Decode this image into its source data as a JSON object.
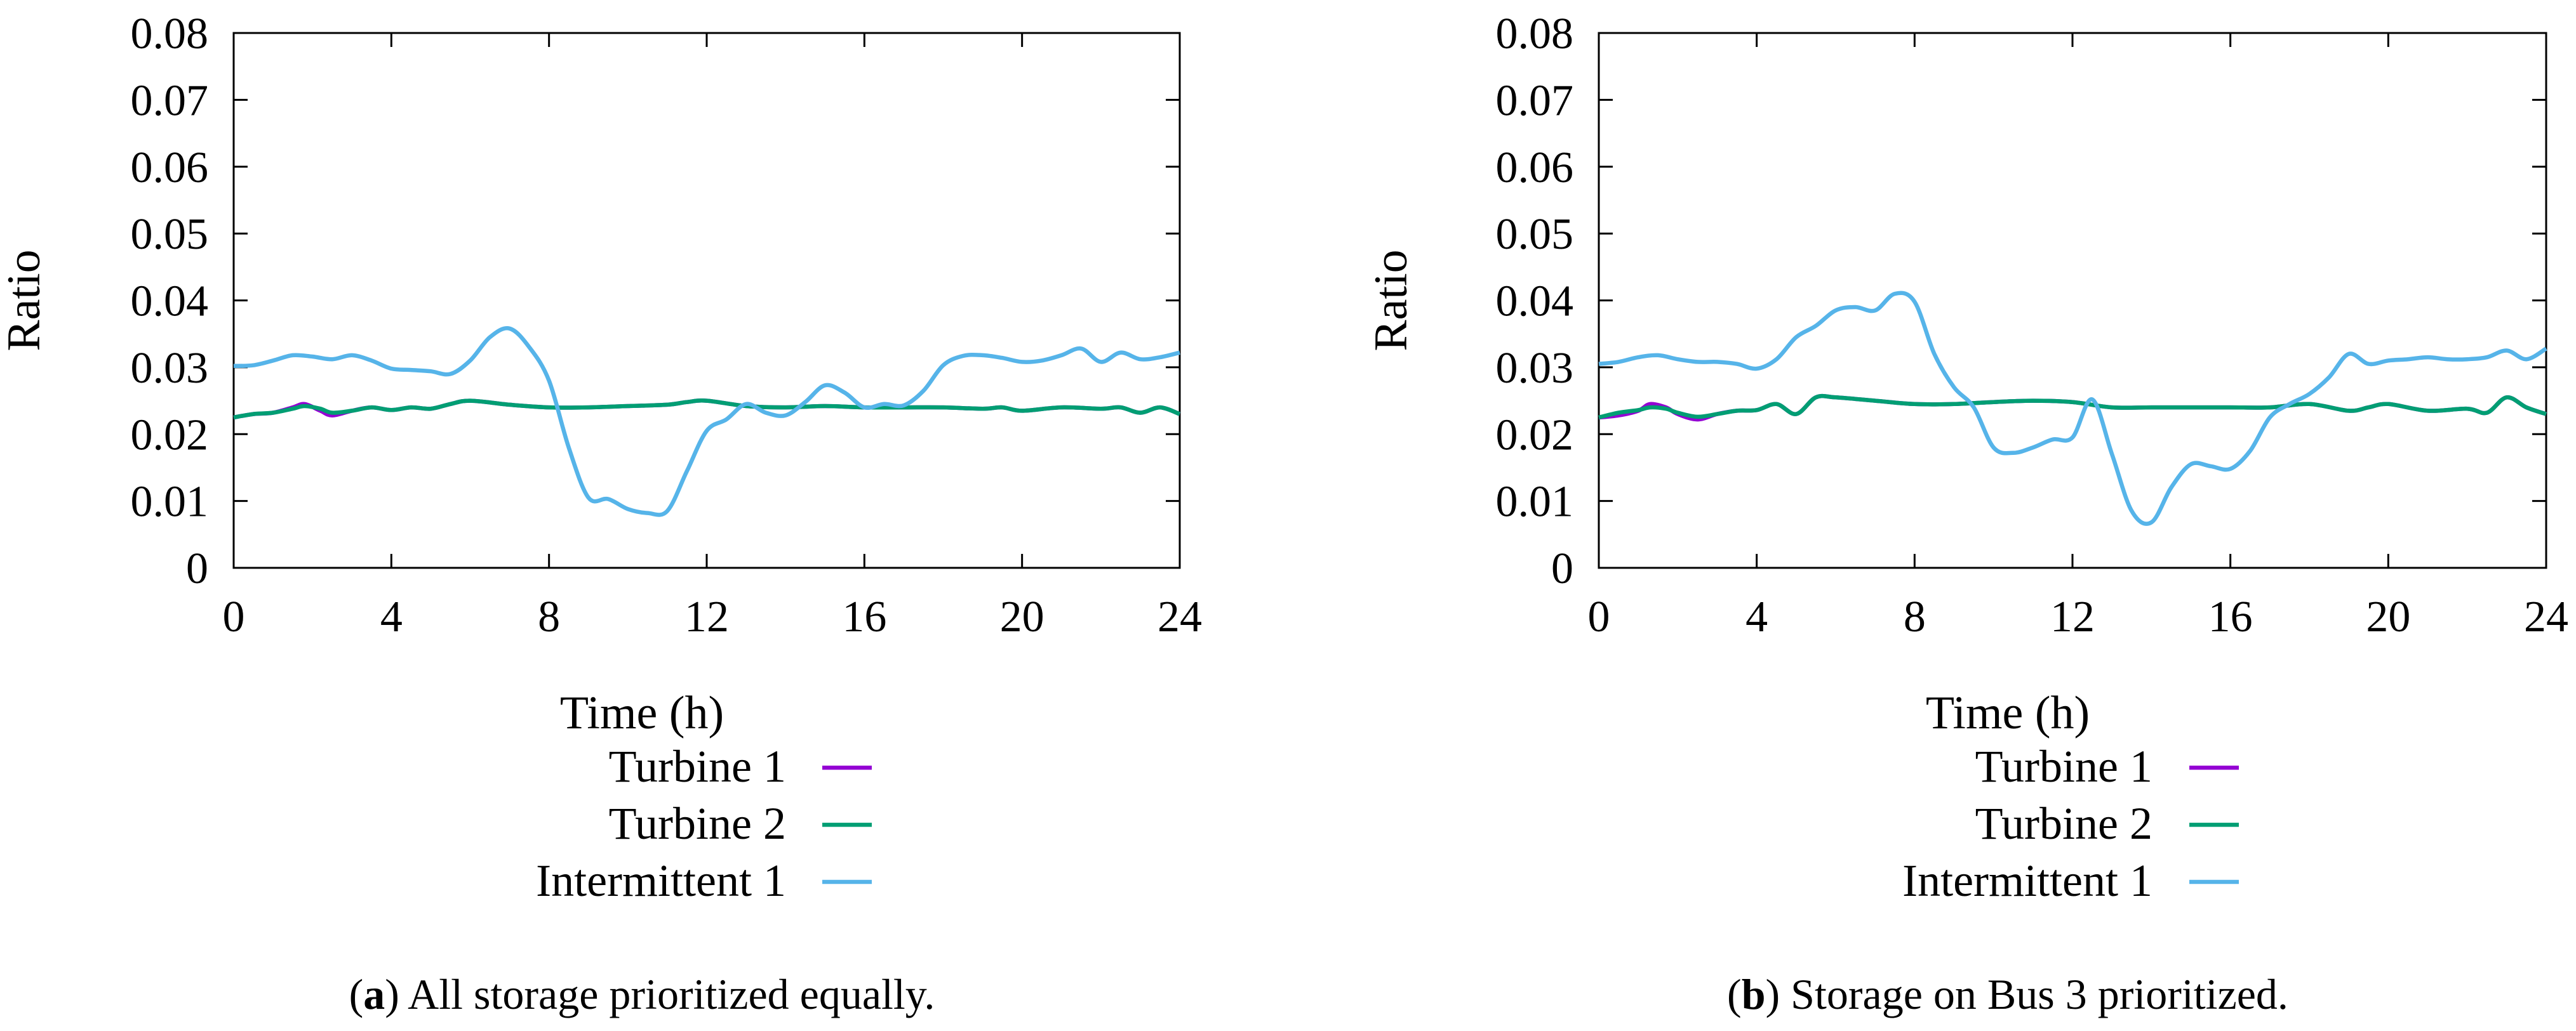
{
  "chart_data": [
    {
      "type": "line",
      "panel_label": "a",
      "caption": "All storage prioritized equally.",
      "xlabel": "Time (h)",
      "ylabel": "Ratio",
      "xlim": [
        0,
        24
      ],
      "ylim": [
        0,
        0.08
      ],
      "x_ticks": [
        "0",
        "4",
        "8",
        "12",
        "16",
        "20",
        "24"
      ],
      "y_ticks": [
        "0",
        "0.01",
        "0.02",
        "0.03",
        "0.04",
        "0.05",
        "0.06",
        "0.07",
        "0.08"
      ],
      "legend": [
        "Turbine 1",
        "Turbine 2",
        "Intermittent 1"
      ],
      "series": [
        {
          "name": "Turbine 1",
          "color": "#9400D3",
          "x": [
            0,
            0.5,
            1,
            1.5,
            1.8,
            2.2,
            2.5,
            3,
            3.5,
            4,
            4.5,
            5,
            5.5,
            6,
            7,
            8,
            9,
            10,
            11,
            11.5,
            12,
            13,
            14,
            15,
            16,
            17,
            18,
            19,
            19.5,
            20,
            21,
            22,
            22.5,
            23,
            23.5,
            24
          ],
          "values": [
            0.0225,
            0.023,
            0.0232,
            0.024,
            0.0245,
            0.0235,
            0.0228,
            0.0235,
            0.024,
            0.0236,
            0.024,
            0.0238,
            0.0245,
            0.025,
            0.0244,
            0.024,
            0.024,
            0.0242,
            0.0244,
            0.0248,
            0.025,
            0.0242,
            0.024,
            0.0242,
            0.024,
            0.024,
            0.024,
            0.0238,
            0.024,
            0.0235,
            0.024,
            0.0238,
            0.024,
            0.0232,
            0.024,
            0.023
          ]
        },
        {
          "name": "Turbine 2",
          "color": "#009E73",
          "x": [
            0,
            0.5,
            1,
            1.5,
            1.8,
            2.2,
            2.5,
            3,
            3.5,
            4,
            4.5,
            5,
            5.5,
            6,
            7,
            8,
            9,
            10,
            11,
            11.5,
            12,
            13,
            14,
            15,
            16,
            17,
            18,
            19,
            19.5,
            20,
            21,
            22,
            22.5,
            23,
            23.5,
            24
          ],
          "values": [
            0.0225,
            0.023,
            0.0232,
            0.0238,
            0.0242,
            0.0238,
            0.0232,
            0.0235,
            0.024,
            0.0236,
            0.024,
            0.0238,
            0.0245,
            0.025,
            0.0244,
            0.024,
            0.024,
            0.0242,
            0.0244,
            0.0248,
            0.025,
            0.0242,
            0.024,
            0.0242,
            0.024,
            0.024,
            0.024,
            0.0238,
            0.024,
            0.0235,
            0.024,
            0.0238,
            0.024,
            0.0232,
            0.024,
            0.023
          ]
        },
        {
          "name": "Intermittent 1",
          "color": "#56B4E9",
          "x": [
            0,
            0.5,
            1,
            1.5,
            2,
            2.5,
            3,
            3.5,
            4,
            4.5,
            5,
            5.5,
            6,
            6.5,
            7,
            7.5,
            8,
            8.5,
            9,
            9.5,
            10,
            10.5,
            11,
            11.5,
            12,
            12.5,
            13,
            13.5,
            14,
            14.5,
            15,
            15.5,
            16,
            16.5,
            17,
            17.5,
            18,
            18.5,
            19,
            19.5,
            20,
            20.5,
            21,
            21.5,
            22,
            22.5,
            23,
            23.5,
            24
          ],
          "values": [
            0.0302,
            0.0303,
            0.031,
            0.0318,
            0.0316,
            0.0312,
            0.0318,
            0.031,
            0.0298,
            0.0296,
            0.0294,
            0.029,
            0.031,
            0.0345,
            0.0358,
            0.033,
            0.028,
            0.018,
            0.0105,
            0.0103,
            0.0088,
            0.0082,
            0.0085,
            0.0145,
            0.0205,
            0.0222,
            0.0245,
            0.0232,
            0.0228,
            0.0248,
            0.0273,
            0.0262,
            0.024,
            0.0245,
            0.0243,
            0.0265,
            0.0303,
            0.0317,
            0.0318,
            0.0314,
            0.0308,
            0.031,
            0.0318,
            0.0328,
            0.0308,
            0.0322,
            0.0312,
            0.0315,
            0.0322
          ]
        }
      ]
    },
    {
      "type": "line",
      "panel_label": "b",
      "caption": "Storage on Bus 3 prioritized.",
      "xlabel": "Time (h)",
      "ylabel": "Ratio",
      "xlim": [
        0,
        24
      ],
      "ylim": [
        0,
        0.08
      ],
      "x_ticks": [
        "0",
        "4",
        "8",
        "12",
        "16",
        "20",
        "24"
      ],
      "y_ticks": [
        "0",
        "0.01",
        "0.02",
        "0.03",
        "0.04",
        "0.05",
        "0.06",
        "0.07",
        "0.08"
      ],
      "legend": [
        "Turbine 1",
        "Turbine 2",
        "Intermittent 1"
      ],
      "series": [
        {
          "name": "Turbine 1",
          "color": "#9400D3",
          "x": [
            0,
            0.5,
            1,
            1.3,
            1.7,
            2,
            2.5,
            3,
            3.5,
            4,
            4.5,
            5,
            5.5,
            6,
            7,
            8,
            9,
            10,
            11,
            12,
            13,
            14,
            15,
            16,
            17,
            18,
            19,
            19.5,
            20,
            21,
            22,
            22.5,
            23,
            23.5,
            24
          ],
          "values": [
            0.0225,
            0.0228,
            0.0235,
            0.0245,
            0.024,
            0.023,
            0.0222,
            0.023,
            0.0235,
            0.0236,
            0.0245,
            0.023,
            0.0255,
            0.0255,
            0.025,
            0.0245,
            0.0245,
            0.0248,
            0.025,
            0.0248,
            0.024,
            0.024,
            0.024,
            0.024,
            0.024,
            0.0245,
            0.0235,
            0.024,
            0.0245,
            0.0235,
            0.0238,
            0.0232,
            0.0255,
            0.024,
            0.023
          ]
        },
        {
          "name": "Turbine 2",
          "color": "#009E73",
          "x": [
            0,
            0.5,
            1,
            1.3,
            1.7,
            2,
            2.5,
            3,
            3.5,
            4,
            4.5,
            5,
            5.5,
            6,
            7,
            8,
            9,
            10,
            11,
            12,
            13,
            14,
            15,
            16,
            17,
            18,
            19,
            19.5,
            20,
            21,
            22,
            22.5,
            23,
            23.5,
            24
          ],
          "values": [
            0.0225,
            0.0232,
            0.0236,
            0.024,
            0.0238,
            0.0232,
            0.0226,
            0.023,
            0.0235,
            0.0236,
            0.0245,
            0.023,
            0.0255,
            0.0255,
            0.025,
            0.0245,
            0.0245,
            0.0248,
            0.025,
            0.0248,
            0.024,
            0.024,
            0.024,
            0.024,
            0.024,
            0.0245,
            0.0235,
            0.024,
            0.0245,
            0.0235,
            0.0238,
            0.0232,
            0.0255,
            0.024,
            0.023
          ]
        },
        {
          "name": "Intermittent 1",
          "color": "#56B4E9",
          "x": [
            0,
            0.5,
            1,
            1.5,
            2,
            2.5,
            3,
            3.5,
            4,
            4.5,
            5,
            5.5,
            6,
            6.5,
            7,
            7.5,
            8,
            8.5,
            9,
            9.5,
            10,
            10.5,
            11,
            11.5,
            12,
            12.5,
            13,
            13.5,
            14,
            14.5,
            15,
            15.5,
            16,
            16.5,
            17,
            17.5,
            18,
            18.5,
            19,
            19.5,
            20,
            20.5,
            21,
            21.5,
            22,
            22.5,
            23,
            23.5,
            24
          ],
          "values": [
            0.0305,
            0.0308,
            0.0315,
            0.0318,
            0.0312,
            0.0308,
            0.0308,
            0.0305,
            0.0298,
            0.0312,
            0.0345,
            0.0362,
            0.0385,
            0.039,
            0.0385,
            0.041,
            0.0398,
            0.032,
            0.027,
            0.024,
            0.018,
            0.0172,
            0.018,
            0.0192,
            0.0195,
            0.0252,
            0.017,
            0.0085,
            0.0068,
            0.012,
            0.0155,
            0.0152,
            0.0148,
            0.0175,
            0.0225,
            0.0245,
            0.026,
            0.0285,
            0.032,
            0.0305,
            0.031,
            0.0312,
            0.0315,
            0.0312,
            0.0312,
            0.0315,
            0.0325,
            0.0312,
            0.0328
          ]
        }
      ]
    }
  ]
}
